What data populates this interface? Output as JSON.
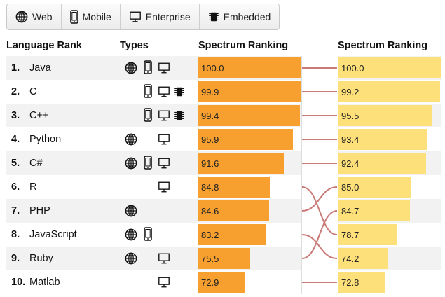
{
  "filters": [
    {
      "label": "Web",
      "icon": "globe-icon"
    },
    {
      "label": "Mobile",
      "icon": "mobile-icon"
    },
    {
      "label": "Enterprise",
      "icon": "monitor-icon"
    },
    {
      "label": "Embedded",
      "icon": "chip-icon"
    }
  ],
  "headers": {
    "rank": "Language Rank",
    "types": "Types",
    "left_ranking": "Spectrum Ranking",
    "right_ranking": "Spectrum Ranking"
  },
  "rows": [
    {
      "rank": "1.",
      "name": "Java",
      "types": [
        "web",
        "mobile",
        "enterprise"
      ],
      "left": "100.0",
      "right": "100.0"
    },
    {
      "rank": "2.",
      "name": "C",
      "types": [
        "mobile",
        "enterprise",
        "embedded"
      ],
      "left": "99.9",
      "right": "99.2"
    },
    {
      "rank": "3.",
      "name": "C++",
      "types": [
        "mobile",
        "enterprise",
        "embedded"
      ],
      "left": "99.4",
      "right": "95.5"
    },
    {
      "rank": "4.",
      "name": "Python",
      "types": [
        "web",
        "enterprise"
      ],
      "left": "95.9",
      "right": "93.4"
    },
    {
      "rank": "5.",
      "name": "C#",
      "types": [
        "web",
        "mobile",
        "enterprise"
      ],
      "left": "91.6",
      "right": "92.4"
    },
    {
      "rank": "6.",
      "name": "R",
      "types": [
        "enterprise"
      ],
      "left": "84.8",
      "right": "85.0"
    },
    {
      "rank": "7.",
      "name": "PHP",
      "types": [
        "web"
      ],
      "left": "84.6",
      "right": "84.7"
    },
    {
      "rank": "8.",
      "name": "JavaScript",
      "types": [
        "web",
        "mobile"
      ],
      "left": "83.2",
      "right": "78.7"
    },
    {
      "rank": "9.",
      "name": "Ruby",
      "types": [
        "web",
        "enterprise"
      ],
      "left": "75.5",
      "right": "74.2"
    },
    {
      "rank": "10.",
      "name": "Matlab",
      "types": [
        "enterprise"
      ],
      "left": "72.9",
      "right": "72.8"
    }
  ],
  "links": [
    [
      0,
      0
    ],
    [
      1,
      1
    ],
    [
      2,
      2
    ],
    [
      3,
      3
    ],
    [
      4,
      4
    ],
    [
      5,
      7
    ],
    [
      6,
      5
    ],
    [
      7,
      8
    ],
    [
      8,
      6
    ],
    [
      9,
      9
    ]
  ],
  "colors": {
    "left_bar": "#f7a030",
    "right_bar": "#fde07a",
    "link": "#c97a76"
  }
}
